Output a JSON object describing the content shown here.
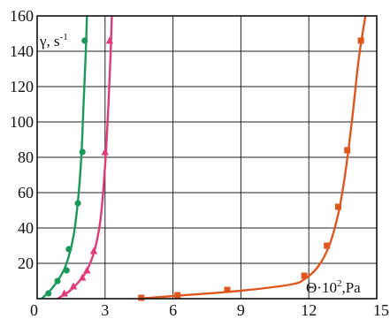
{
  "chart_data": {
    "type": "scatter",
    "xlim": [
      0,
      15
    ],
    "ylim": [
      0,
      160
    ],
    "xticks": [
      "0",
      "3",
      "6",
      "9",
      "12",
      "15"
    ],
    "yticks": [
      "20",
      "40",
      "60",
      "80",
      "100",
      "120",
      "140",
      "160"
    ],
    "grid": true,
    "ylabel": {
      "main": "γ, s",
      "sup": "-1"
    },
    "xlabel": {
      "main": "Θ·10",
      "sup": "2",
      "tail": ",Pa"
    },
    "series": [
      {
        "color": "#1a9a5a",
        "marker": "circle",
        "points": [
          [
            0.5,
            3
          ],
          [
            0.9,
            10
          ],
          [
            1.3,
            16
          ],
          [
            1.4,
            28
          ],
          [
            1.8,
            54
          ],
          [
            2.0,
            83
          ],
          [
            2.1,
            146
          ]
        ],
        "curve": [
          [
            0.2,
            0
          ],
          [
            0.6,
            5
          ],
          [
            1.0,
            12
          ],
          [
            1.3,
            20
          ],
          [
            1.6,
            35
          ],
          [
            1.8,
            55
          ],
          [
            1.95,
            80
          ],
          [
            2.05,
            110
          ],
          [
            2.15,
            140
          ],
          [
            2.2,
            160
          ]
        ]
      },
      {
        "color": "#e03a7a",
        "marker": "triangle",
        "points": [
          [
            1.2,
            3
          ],
          [
            1.6,
            7
          ],
          [
            2.0,
            12
          ],
          [
            2.2,
            16
          ],
          [
            2.5,
            27
          ],
          [
            3.0,
            83
          ],
          [
            3.2,
            146
          ]
        ],
        "curve": [
          [
            0.9,
            0
          ],
          [
            1.4,
            4
          ],
          [
            1.8,
            9
          ],
          [
            2.2,
            16
          ],
          [
            2.55,
            28
          ],
          [
            2.8,
            45
          ],
          [
            3.0,
            75
          ],
          [
            3.15,
            110
          ],
          [
            3.25,
            140
          ],
          [
            3.3,
            160
          ]
        ]
      },
      {
        "color": "#e0561e",
        "marker": "square",
        "points": [
          [
            4.6,
            0.5
          ],
          [
            6.2,
            2
          ],
          [
            8.4,
            5
          ],
          [
            11.8,
            13
          ],
          [
            12.8,
            30
          ],
          [
            13.3,
            52
          ],
          [
            13.7,
            84
          ],
          [
            14.3,
            146
          ]
        ],
        "curve": [
          [
            4.5,
            0
          ],
          [
            6.5,
            2
          ],
          [
            9,
            4.5
          ],
          [
            11.2,
            8
          ],
          [
            11.8,
            11
          ],
          [
            12.4,
            18
          ],
          [
            12.9,
            30
          ],
          [
            13.3,
            48
          ],
          [
            13.6,
            70
          ],
          [
            13.9,
            100
          ],
          [
            14.2,
            135
          ],
          [
            14.5,
            160
          ]
        ]
      }
    ]
  }
}
